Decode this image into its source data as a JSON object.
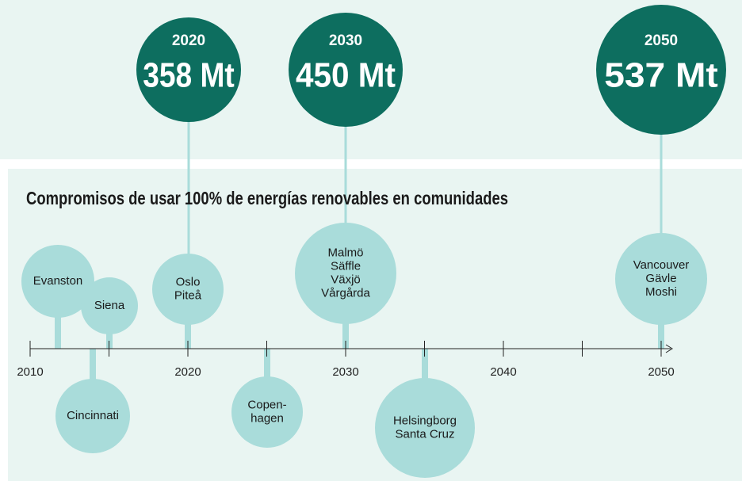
{
  "highlights": [
    {
      "year": "2020",
      "value": "358 Mt"
    },
    {
      "year": "2030",
      "value": "450 Mt"
    },
    {
      "year": "2050",
      "value": "537 Mt"
    }
  ],
  "title": "Compromisos de usar 100% de energías renovables en comunidades",
  "axis": {
    "labels": [
      "2010",
      "2020",
      "2030",
      "2040",
      "2050"
    ]
  },
  "events": [
    {
      "lines": [
        "Evanston"
      ]
    },
    {
      "lines": [
        "Siena"
      ]
    },
    {
      "lines": [
        "Cincinnati"
      ]
    },
    {
      "lines": [
        "Oslo",
        "Piteå"
      ]
    },
    {
      "lines": [
        "Copen-",
        "hagen"
      ]
    },
    {
      "lines": [
        "Malmö",
        "Säffle",
        "Växjö",
        "Vårgårda"
      ]
    },
    {
      "lines": [
        "Helsingborg",
        "Santa Cruz"
      ]
    },
    {
      "lines": [
        "Vancouver",
        "Gävle",
        "Moshi"
      ]
    }
  ]
}
